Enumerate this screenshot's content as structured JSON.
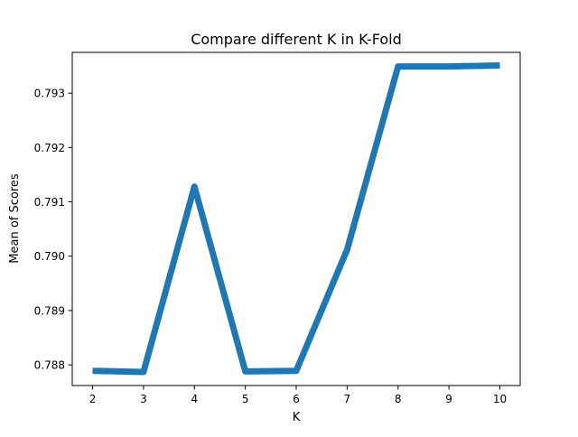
{
  "chart_data": {
    "type": "line",
    "title": "Compare different K in K-Fold",
    "xlabel": "K",
    "ylabel": "Mean of Scores",
    "x": [
      2,
      3,
      4,
      5,
      6,
      7,
      8,
      9,
      10
    ],
    "series": [
      {
        "values": [
          0.78789,
          0.78787,
          0.79128,
          0.78788,
          0.78789,
          0.79012,
          0.79349,
          0.79349,
          0.79351
        ]
      }
    ],
    "xticks": [
      "2",
      "3",
      "4",
      "5",
      "6",
      "7",
      "8",
      "9",
      "10"
    ],
    "yticks": [
      "0.788",
      "0.789",
      "0.790",
      "0.791",
      "0.792",
      "0.793"
    ],
    "xlim": [
      1.6,
      10.4
    ],
    "ylim": [
      0.78762,
      0.79375
    ],
    "grid": false,
    "line_color": "#1f77b4"
  }
}
